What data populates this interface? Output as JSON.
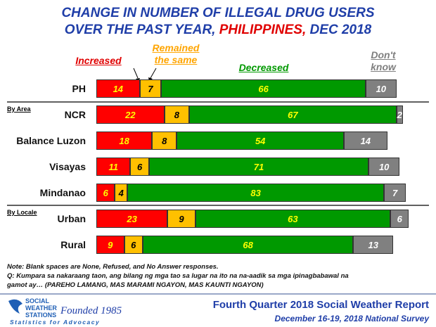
{
  "chart_data": {
    "type": "stacked-bar-horizontal",
    "title_lines": [
      [
        {
          "text": "CHANGE IN NUMBER OF ILLEGAL DRUG USERS",
          "color": "#1f3ea8"
        }
      ],
      [
        {
          "text": "OVER THE PAST YEAR, ",
          "color": "#1f3ea8"
        },
        {
          "text": "PHILIPPINES,",
          "color": "#e00000"
        },
        {
          "text": " DEC 2018",
          "color": "#1f3ea8"
        }
      ]
    ],
    "categories": [
      "PH",
      "NCR",
      "Balance Luzon",
      "Visayas",
      "Mindanao",
      "Urban",
      "Rural"
    ],
    "group_labels": [
      "By Area",
      "By Locale"
    ],
    "xlim": [
      0,
      100
    ],
    "series": [
      {
        "name": "Increased",
        "color": "#ff0000",
        "label_color": "#ffff00",
        "legend_color": "#e00000",
        "values": [
          14,
          22,
          18,
          11,
          6,
          23,
          9
        ]
      },
      {
        "name": "Remained the same",
        "color": "#ffc000",
        "label_color": "#000000",
        "legend_color": "#ffa500",
        "values": [
          7,
          8,
          8,
          6,
          4,
          9,
          6
        ]
      },
      {
        "name": "Decreased",
        "color": "#009900",
        "label_color": "#ffff00",
        "legend_color": "#009900",
        "values": [
          66,
          67,
          54,
          71,
          83,
          63,
          68
        ]
      },
      {
        "name": "Don't know",
        "color": "#808080",
        "label_color": "#ffffff",
        "legend_color": "#7f7f7f",
        "values": [
          10,
          2,
          14,
          10,
          7,
          6,
          13
        ]
      }
    ],
    "notes": [
      "Note: Blank spaces are None, Refused, and No Answer responses.",
      "Q: Kumpara sa nakaraang taon, ang bilang ng mga tao sa lugar na ito na na-aadik sa mga ipinagbabawal na",
      "gamot ay… (PAREHO LAMANG, MAS MARAMI NGAYON, MAS KAUNTI NGAYON)"
    ],
    "footer": {
      "logo_line1": "SOCIAL",
      "logo_line2": "WEATHER",
      "logo_line3": "STATIONS",
      "founded": "Founded 1985",
      "tagline": "Statistics for Advocacy",
      "report": "Fourth Quarter 2018 Social Weather Report",
      "survey": "December 16-19, 2018 National Survey"
    }
  }
}
